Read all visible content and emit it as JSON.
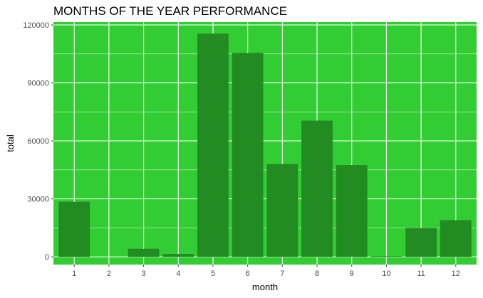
{
  "chart_data": {
    "type": "bar",
    "title": "MONTHS OF THE YEAR PERFORMANCE",
    "xlabel": "month",
    "ylabel": "total",
    "categories": [
      "1",
      "2",
      "3",
      "4",
      "5",
      "6",
      "7",
      "8",
      "9",
      "10",
      "11",
      "12"
    ],
    "values": [
      28500,
      0,
      4200,
      1500,
      115500,
      105500,
      48000,
      70500,
      47500,
      300,
      15000,
      19000
    ],
    "ylim": [
      -4000,
      121500
    ],
    "yticks": [
      0,
      30000,
      60000,
      90000,
      120000
    ],
    "ytick_labels": [
      "0",
      "30000",
      "60000",
      "90000",
      "120000"
    ],
    "grid": true,
    "colors": {
      "panel": "#32cd32",
      "bar": "#228b22",
      "grid": "#ffffff"
    }
  }
}
